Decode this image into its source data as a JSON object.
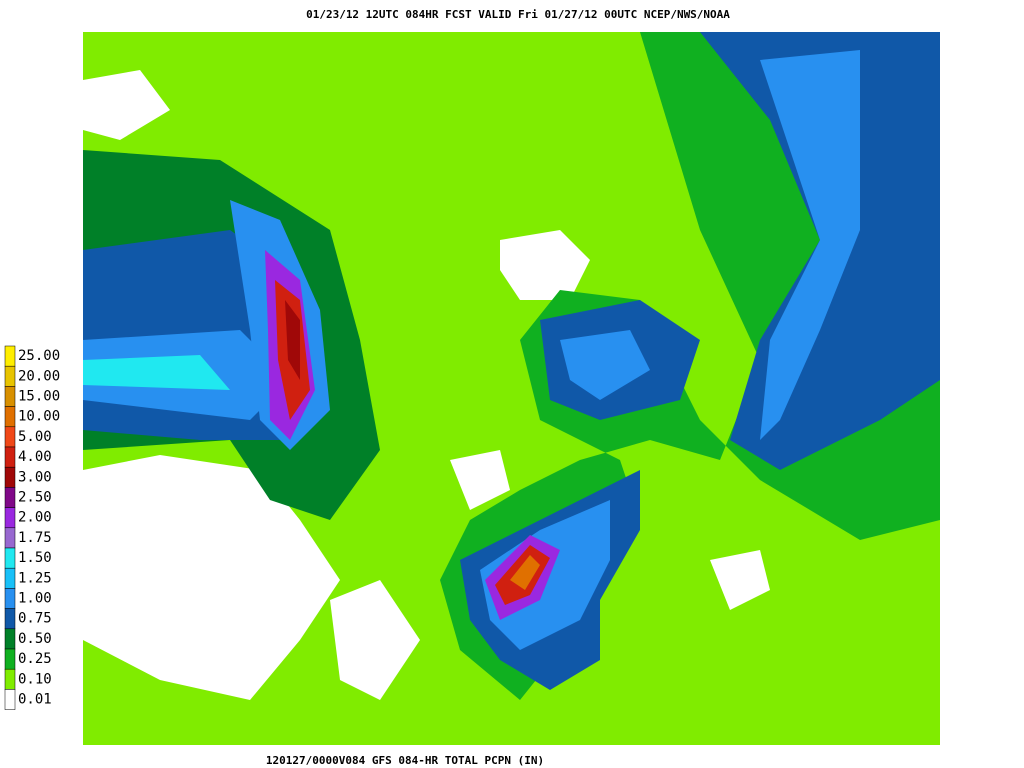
{
  "header": {
    "title": "01/23/12 12UTC   084HR  FCST VALID Fri 01/27/12 00UTC  NCEP/NWS/NOAA"
  },
  "footer": {
    "caption": "120127/0000V084 GFS 084-HR TOTAL PCPN (IN)"
  },
  "legend": {
    "labels": [
      "25.00",
      "20.00",
      "15.00",
      "10.00",
      "5.00",
      "4.00",
      "3.00",
      "2.50",
      "2.00",
      "1.75",
      "1.50",
      "1.25",
      "1.00",
      "0.75",
      "0.50",
      "0.25",
      "0.10",
      "0.01"
    ],
    "colors": [
      "#ffee00",
      "#e8c400",
      "#d89000",
      "#e07000",
      "#f04818",
      "#d02010",
      "#a00808",
      "#800888",
      "#9a28e0",
      "#9868d0",
      "#20e8f0",
      "#18c0f8",
      "#2890f0",
      "#1058a8",
      "#008028",
      "#10b020",
      "#80ec00",
      "#ffffff"
    ]
  }
}
